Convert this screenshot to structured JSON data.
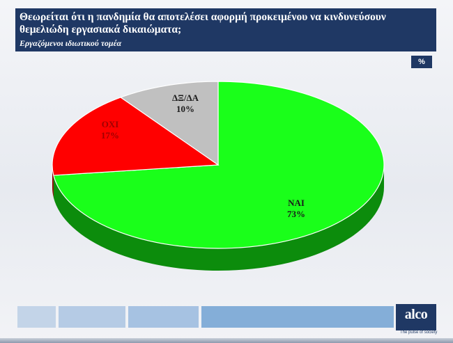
{
  "header": {
    "title": "Θεωρείται ότι η πανδημία θα αποτελέσει αφορμή προκειμένου να κινδυνεύσουν θεμελιώδη εργασιακά δικαιώματα;",
    "subtitle": "Εργαζόμενοι ιδιωτικού  τομέα"
  },
  "unit_badge": "%",
  "chart_data": {
    "type": "pie",
    "title": "Θεωρείται ότι η πανδημία θα αποτελέσει αφορμή προκειμένου να κινδυνεύσουν θεμελιώδη εργασιακά δικαιώματα;",
    "subtitle": "Εργαζόμενοι ιδιωτικού  τομέα",
    "unit": "%",
    "slices": [
      {
        "label": "ΝΑΙ",
        "value": 73,
        "display": "73%",
        "color": "#1aff1a",
        "side_color": "#0c8c0c"
      },
      {
        "label": "ΟΧΙ",
        "value": 17,
        "display": "17%",
        "color": "#ff0000",
        "side_color": "#8a0000"
      },
      {
        "label": "ΔΞ/ΔΑ",
        "value": 10,
        "display": "10%",
        "color": "#c0c0c0",
        "side_color": "#7a7a7a"
      }
    ]
  },
  "footer": {
    "colors": [
      "#c3d4e8",
      "#b5cbe5",
      "#a6c2e2",
      "#84aed8"
    ],
    "logo": "alco",
    "tagline": "The pulse of society"
  }
}
